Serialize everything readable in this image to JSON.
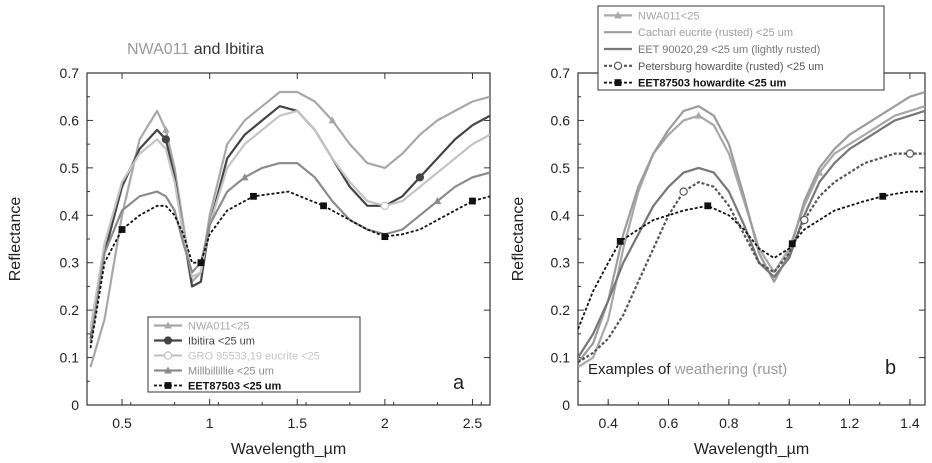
{
  "chart_data": [
    {
      "type": "line",
      "panel_label": "a",
      "title_parts": [
        {
          "text": "NWA011",
          "color": "#9a9a9a"
        },
        {
          "text": " and Ibitira",
          "color": "#333333"
        }
      ],
      "xlabel": "Wavelength_µm",
      "ylabel": "Reflectance",
      "xlim": [
        0.3,
        2.6
      ],
      "ylim": [
        0,
        0.7
      ],
      "xticks": [
        0.5,
        1,
        1.5,
        2,
        2.5
      ],
      "xtick_labels": [
        "0.5",
        "1",
        "1.5",
        "2",
        "2.5"
      ],
      "yticks": [
        0,
        0.1,
        0.2,
        0.3,
        0.4,
        0.5,
        0.6,
        0.7
      ],
      "ytick_labels": [
        "0",
        "0.1",
        "0.2",
        "0.3",
        "0.4",
        "0.5",
        "0.6",
        "0.7"
      ],
      "grid": false,
      "legend_position": "bottom-center",
      "series": [
        {
          "name": "NWA011<25",
          "color": "#a8a8a8",
          "dash": "",
          "marker": "triangle",
          "x": [
            0.32,
            0.4,
            0.5,
            0.6,
            0.7,
            0.75,
            0.8,
            0.85,
            0.9,
            0.95,
            1.0,
            1.1,
            1.2,
            1.3,
            1.4,
            1.5,
            1.6,
            1.7,
            1.8,
            1.9,
            2.0,
            2.1,
            2.2,
            2.3,
            2.4,
            2.5,
            2.6
          ],
          "y": [
            0.08,
            0.18,
            0.4,
            0.56,
            0.62,
            0.58,
            0.5,
            0.38,
            0.26,
            0.28,
            0.4,
            0.55,
            0.6,
            0.63,
            0.66,
            0.66,
            0.64,
            0.6,
            0.55,
            0.51,
            0.5,
            0.53,
            0.57,
            0.6,
            0.62,
            0.64,
            0.65
          ]
        },
        {
          "name": "Ibitira <25 um",
          "color": "#444444",
          "dash": "",
          "marker": "circle",
          "x": [
            0.32,
            0.4,
            0.5,
            0.6,
            0.7,
            0.75,
            0.8,
            0.85,
            0.9,
            0.95,
            1.0,
            1.1,
            1.2,
            1.3,
            1.4,
            1.5,
            1.6,
            1.7,
            1.8,
            1.9,
            2.0,
            2.1,
            2.2,
            2.3,
            2.4,
            2.5,
            2.6
          ],
          "y": [
            0.14,
            0.32,
            0.46,
            0.54,
            0.58,
            0.56,
            0.48,
            0.36,
            0.25,
            0.26,
            0.38,
            0.52,
            0.57,
            0.6,
            0.63,
            0.62,
            0.58,
            0.52,
            0.46,
            0.42,
            0.42,
            0.44,
            0.48,
            0.52,
            0.56,
            0.59,
            0.61
          ]
        },
        {
          "name": "GRO 95533,19 eucrite <25",
          "color": "#c4c4c4",
          "dash": "",
          "marker": "open-circle",
          "x": [
            0.32,
            0.4,
            0.5,
            0.6,
            0.7,
            0.75,
            0.8,
            0.85,
            0.9,
            0.95,
            1.0,
            1.1,
            1.2,
            1.3,
            1.4,
            1.5,
            1.6,
            1.7,
            1.8,
            1.9,
            2.0,
            2.1,
            2.2,
            2.3,
            2.4,
            2.5,
            2.6
          ],
          "y": [
            0.16,
            0.34,
            0.47,
            0.53,
            0.56,
            0.54,
            0.47,
            0.36,
            0.27,
            0.28,
            0.38,
            0.5,
            0.55,
            0.58,
            0.61,
            0.62,
            0.58,
            0.52,
            0.47,
            0.43,
            0.42,
            0.43,
            0.46,
            0.49,
            0.52,
            0.55,
            0.57
          ]
        },
        {
          "name": "Millbillillie <25 um",
          "color": "#8c8c8c",
          "dash": "",
          "marker": "triangle",
          "x": [
            0.32,
            0.4,
            0.5,
            0.6,
            0.7,
            0.75,
            0.8,
            0.85,
            0.9,
            0.95,
            1.0,
            1.1,
            1.2,
            1.3,
            1.4,
            1.5,
            1.6,
            1.7,
            1.8,
            1.9,
            2.0,
            2.1,
            2.2,
            2.3,
            2.4,
            2.5,
            2.6
          ],
          "y": [
            0.13,
            0.32,
            0.41,
            0.44,
            0.45,
            0.44,
            0.41,
            0.34,
            0.28,
            0.3,
            0.38,
            0.45,
            0.48,
            0.5,
            0.51,
            0.51,
            0.48,
            0.43,
            0.39,
            0.37,
            0.36,
            0.37,
            0.4,
            0.43,
            0.46,
            0.48,
            0.49
          ]
        },
        {
          "name": "EET87503 <25 um",
          "color": "#111111",
          "dash": "3,2",
          "marker": "square",
          "x": [
            0.32,
            0.4,
            0.5,
            0.6,
            0.7,
            0.75,
            0.8,
            0.85,
            0.9,
            0.95,
            1.0,
            1.1,
            1.25,
            1.45,
            1.65,
            1.8,
            1.9,
            2.0,
            2.1,
            2.2,
            2.3,
            2.4,
            2.5,
            2.6
          ],
          "y": [
            0.12,
            0.3,
            0.37,
            0.4,
            0.42,
            0.42,
            0.4,
            0.36,
            0.3,
            0.3,
            0.36,
            0.41,
            0.44,
            0.45,
            0.42,
            0.39,
            0.37,
            0.355,
            0.36,
            0.37,
            0.39,
            0.41,
            0.43,
            0.44
          ]
        }
      ],
      "annotations": []
    },
    {
      "type": "line",
      "panel_label": "b",
      "title_parts": [],
      "xlabel": "Wavelength_µm",
      "ylabel": "Reflectance",
      "xlim": [
        0.3,
        1.45
      ],
      "ylim": [
        0,
        0.7
      ],
      "xticks": [
        0.4,
        0.6,
        0.8,
        1,
        1.2,
        1.4
      ],
      "xtick_labels": [
        "0.4",
        "0.6",
        "0.8",
        "1",
        "1.2",
        "1.4"
      ],
      "yticks": [
        0,
        0.1,
        0.2,
        0.3,
        0.4,
        0.5,
        0.6,
        0.7
      ],
      "ytick_labels": [
        "0",
        "0.1",
        "0.2",
        "0.3",
        "0.4",
        "0.5",
        "0.6",
        "0.7"
      ],
      "grid": false,
      "legend_position": "top-center (above plot)",
      "series": [
        {
          "name": "NWA011<25",
          "color": "#a8a8a8",
          "dash": "",
          "marker": "triangle",
          "x": [
            0.3,
            0.35,
            0.4,
            0.45,
            0.5,
            0.55,
            0.6,
            0.65,
            0.7,
            0.75,
            0.8,
            0.85,
            0.9,
            0.95,
            1.0,
            1.05,
            1.1,
            1.15,
            1.2,
            1.25,
            1.3,
            1.35,
            1.4,
            1.45
          ],
          "y": [
            0.08,
            0.1,
            0.18,
            0.33,
            0.45,
            0.53,
            0.57,
            0.6,
            0.61,
            0.59,
            0.53,
            0.43,
            0.33,
            0.28,
            0.33,
            0.42,
            0.49,
            0.53,
            0.55,
            0.57,
            0.59,
            0.61,
            0.62,
            0.63
          ]
        },
        {
          "name": "Cachari eucrite (rusted) <25 um",
          "color": "#9c9c9c",
          "dash": "",
          "marker": "none",
          "x": [
            0.3,
            0.35,
            0.4,
            0.45,
            0.5,
            0.55,
            0.6,
            0.65,
            0.7,
            0.75,
            0.8,
            0.85,
            0.9,
            0.95,
            1.0,
            1.05,
            1.1,
            1.15,
            1.2,
            1.25,
            1.3,
            1.35,
            1.4,
            1.45
          ],
          "y": [
            0.09,
            0.13,
            0.22,
            0.36,
            0.46,
            0.53,
            0.58,
            0.62,
            0.63,
            0.61,
            0.55,
            0.44,
            0.32,
            0.26,
            0.32,
            0.43,
            0.5,
            0.54,
            0.57,
            0.59,
            0.61,
            0.63,
            0.65,
            0.66
          ]
        },
        {
          "name": "EET 90020,29 <25 um (lightly rusted)",
          "color": "#777777",
          "dash": "",
          "marker": "none",
          "x": [
            0.3,
            0.35,
            0.4,
            0.45,
            0.5,
            0.55,
            0.6,
            0.65,
            0.7,
            0.75,
            0.8,
            0.85,
            0.9,
            0.95,
            1.0,
            1.05,
            1.1,
            1.15,
            1.2,
            1.25,
            1.3,
            1.35,
            1.4,
            1.45
          ],
          "y": [
            0.1,
            0.15,
            0.22,
            0.3,
            0.36,
            0.42,
            0.46,
            0.49,
            0.5,
            0.49,
            0.45,
            0.38,
            0.3,
            0.27,
            0.31,
            0.4,
            0.47,
            0.51,
            0.54,
            0.56,
            0.58,
            0.6,
            0.61,
            0.62
          ]
        },
        {
          "name": "Petersburg howardite (rusted) <25 um",
          "color": "#555555",
          "dash": "3,2",
          "marker": "open-circle",
          "x": [
            0.3,
            0.35,
            0.4,
            0.45,
            0.5,
            0.55,
            0.6,
            0.65,
            0.7,
            0.75,
            0.8,
            0.85,
            0.9,
            0.95,
            1.0,
            1.05,
            1.1,
            1.15,
            1.2,
            1.25,
            1.3,
            1.35,
            1.4,
            1.45
          ],
          "y": [
            0.09,
            0.11,
            0.14,
            0.19,
            0.26,
            0.33,
            0.4,
            0.45,
            0.47,
            0.46,
            0.42,
            0.36,
            0.3,
            0.28,
            0.32,
            0.39,
            0.44,
            0.47,
            0.49,
            0.51,
            0.52,
            0.53,
            0.53,
            0.53
          ]
        },
        {
          "name": "EET87503 howardite <25 um",
          "color": "#111111",
          "dash": "3,2",
          "marker": "square",
          "x": [
            0.3,
            0.35,
            0.4,
            0.44,
            0.5,
            0.55,
            0.6,
            0.65,
            0.73,
            0.8,
            0.85,
            0.9,
            0.95,
            1.0,
            1.01,
            1.05,
            1.1,
            1.15,
            1.2,
            1.25,
            1.31,
            1.35,
            1.4,
            1.45
          ],
          "y": [
            0.16,
            0.24,
            0.3,
            0.345,
            0.37,
            0.39,
            0.4,
            0.41,
            0.42,
            0.4,
            0.37,
            0.33,
            0.31,
            0.33,
            0.34,
            0.37,
            0.39,
            0.41,
            0.42,
            0.43,
            0.44,
            0.445,
            0.45,
            0.45
          ]
        }
      ],
      "annotations": [
        {
          "parts": [
            {
              "text": "Examples of ",
              "color": "#222222"
            },
            {
              "text": "weathering",
              "color": "#9a9a9a"
            },
            {
              "text": " (rust)",
              "color": "#9a9a9a"
            }
          ]
        }
      ]
    }
  ]
}
